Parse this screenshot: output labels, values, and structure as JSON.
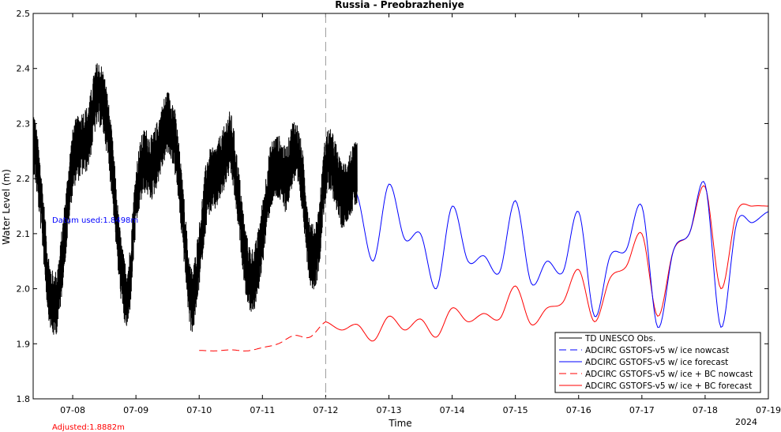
{
  "chart_data": {
    "type": "line",
    "title": "Russia - Preobrazheniye",
    "xlabel": "Time",
    "ylabel": "Water Level (m)",
    "year_label": "2024",
    "x_ticks": [
      "07-08",
      "07-09",
      "07-10",
      "07-11",
      "07-12",
      "07-13",
      "07-14",
      "07-15",
      "07-16",
      "07-17",
      "07-18",
      "07-19"
    ],
    "x_range": [
      "2024-07-07 09:00",
      "2024-07-19 00:00"
    ],
    "ylim": [
      1.8,
      2.5
    ],
    "y_ticks": [
      1.8,
      1.9,
      2.0,
      2.1,
      2.2,
      2.3,
      2.4,
      2.5
    ],
    "grid": false,
    "legend_position": "bottom-right",
    "nowcast_forecast_divider": "2024-07-12 00:00",
    "annotations": {
      "datum_used": "Datum used:1.8498m",
      "adjusted": "Adjusted:1.8882m"
    },
    "colors": {
      "obs": "#000000",
      "ice": "#0000ff",
      "bc": "#ff0000",
      "divider": "#999999",
      "datum_text": "#0000ff",
      "adjusted_text": "#ff0000"
    },
    "series": [
      {
        "name": "TD UNESCO Obs.",
        "style": "solid",
        "color": "#000000",
        "x": [
          "07-07 09:00",
          "07-07 12:00",
          "07-07 15:00",
          "07-07 18:00",
          "07-07 21:00",
          "07-08 00:00",
          "07-08 03:00",
          "07-08 06:00",
          "07-08 09:00",
          "07-08 12:00",
          "07-08 15:00",
          "07-08 18:00",
          "07-08 21:00",
          "07-09 00:00",
          "07-09 03:00",
          "07-09 06:00",
          "07-09 09:00",
          "07-09 12:00",
          "07-09 15:00",
          "07-09 18:00",
          "07-09 21:00",
          "07-10 00:00",
          "07-10 03:00",
          "07-10 06:00",
          "07-10 09:00",
          "07-10 12:00",
          "07-10 15:00",
          "07-10 18:00",
          "07-10 21:00",
          "07-11 00:00",
          "07-11 03:00",
          "07-11 06:00",
          "07-11 09:00",
          "07-11 12:00",
          "07-11 15:00",
          "07-11 18:00",
          "07-11 21:00",
          "07-12 00:00",
          "07-12 03:00",
          "07-12 06:00",
          "07-12 09:00",
          "07-12 12:00"
        ],
        "y": [
          2.27,
          2.16,
          2.0,
          1.98,
          2.1,
          2.23,
          2.26,
          2.28,
          2.35,
          2.33,
          2.22,
          2.05,
          1.99,
          2.16,
          2.23,
          2.22,
          2.26,
          2.3,
          2.26,
          2.12,
          1.98,
          2.06,
          2.18,
          2.2,
          2.23,
          2.26,
          2.16,
          2.04,
          2.02,
          2.1,
          2.2,
          2.22,
          2.2,
          2.25,
          2.2,
          2.07,
          2.08,
          2.22,
          2.22,
          2.17,
          2.19,
          2.21
        ],
        "noise_amplitude": 0.05
      },
      {
        "name": "ADCIRC GSTOFS-v5 w/ ice nowcast",
        "style": "dashed",
        "color": "#0000ff",
        "x": [
          "07-07 09:00",
          "07-07 12:00",
          "07-07 15:00",
          "07-07 18:00",
          "07-07 21:00",
          "07-08 00:00",
          "07-08 03:00",
          "07-08 06:00",
          "07-08 09:00",
          "07-08 12:00",
          "07-08 15:00",
          "07-08 18:00",
          "07-08 21:00",
          "07-09 00:00",
          "07-09 03:00",
          "07-09 06:00",
          "07-09 09:00",
          "07-09 12:00",
          "07-09 15:00",
          "07-09 18:00",
          "07-09 21:00",
          "07-10 00:00",
          "07-10 03:00",
          "07-10 06:00",
          "07-10 09:00",
          "07-10 12:00",
          "07-10 15:00",
          "07-10 18:00",
          "07-10 21:00",
          "07-11 00:00",
          "07-11 03:00",
          "07-11 06:00",
          "07-11 09:00",
          "07-11 12:00",
          "07-11 15:00",
          "07-11 18:00",
          "07-11 21:00",
          "07-12 00:00"
        ],
        "y": [
          2.27,
          2.16,
          2.0,
          1.98,
          2.1,
          2.23,
          2.26,
          2.28,
          2.35,
          2.33,
          2.22,
          2.05,
          1.99,
          2.16,
          2.23,
          2.22,
          2.26,
          2.3,
          2.26,
          2.12,
          1.98,
          2.06,
          2.18,
          2.2,
          2.23,
          2.26,
          2.16,
          2.04,
          2.02,
          2.1,
          2.2,
          2.22,
          2.2,
          2.25,
          2.2,
          2.07,
          2.08,
          2.22
        ]
      },
      {
        "name": "ADCIRC GSTOFS-v5 w/ ice forecast",
        "style": "solid",
        "color": "#0000ff",
        "x": [
          "07-12 00:00",
          "07-12 06:00",
          "07-12 12:00",
          "07-12 18:00",
          "07-13 00:00",
          "07-13 06:00",
          "07-13 12:00",
          "07-13 18:00",
          "07-14 00:00",
          "07-14 06:00",
          "07-14 12:00",
          "07-14 18:00",
          "07-15 00:00",
          "07-15 06:00",
          "07-15 12:00",
          "07-15 18:00",
          "07-16 00:00",
          "07-16 06:00",
          "07-16 12:00",
          "07-16 18:00",
          "07-17 00:00",
          "07-17 06:00",
          "07-17 12:00",
          "07-17 18:00",
          "07-18 00:00",
          "07-18 06:00",
          "07-18 12:00",
          "07-18 18:00",
          "07-19 00:00"
        ],
        "y": [
          2.22,
          2.2,
          2.17,
          2.05,
          2.19,
          2.09,
          2.1,
          2.0,
          2.15,
          2.05,
          2.06,
          2.03,
          2.16,
          2.01,
          2.05,
          2.03,
          2.14,
          1.95,
          2.06,
          2.07,
          2.15,
          1.93,
          2.07,
          2.1,
          2.19,
          1.93,
          2.12,
          2.12,
          2.14
        ]
      },
      {
        "name": "ADCIRC GSTOFS-v5 w/ ice + BC nowcast",
        "style": "dashed",
        "color": "#ff0000",
        "x": [
          "07-10 00:00",
          "07-10 06:00",
          "07-10 12:00",
          "07-10 18:00",
          "07-11 00:00",
          "07-11 06:00",
          "07-11 12:00",
          "07-11 18:00",
          "07-12 00:00"
        ],
        "y": [
          1.888,
          1.887,
          1.889,
          1.887,
          1.893,
          1.9,
          1.915,
          1.912,
          1.94
        ]
      },
      {
        "name": "ADCIRC GSTOFS-v5 w/ ice + BC forecast",
        "style": "solid",
        "color": "#ff0000",
        "x": [
          "07-12 00:00",
          "07-12 06:00",
          "07-12 12:00",
          "07-12 18:00",
          "07-13 00:00",
          "07-13 06:00",
          "07-13 12:00",
          "07-13 18:00",
          "07-14 00:00",
          "07-14 06:00",
          "07-14 12:00",
          "07-14 18:00",
          "07-15 00:00",
          "07-15 06:00",
          "07-15 12:00",
          "07-15 18:00",
          "07-16 00:00",
          "07-16 06:00",
          "07-16 12:00",
          "07-16 18:00",
          "07-17 00:00",
          "07-17 06:00",
          "07-17 12:00",
          "07-17 18:00",
          "07-18 00:00",
          "07-18 06:00",
          "07-18 12:00",
          "07-18 18:00",
          "07-19 00:00"
        ],
        "y": [
          1.94,
          1.925,
          1.935,
          1.905,
          1.95,
          1.925,
          1.945,
          1.912,
          1.965,
          1.94,
          1.955,
          1.945,
          2.005,
          1.935,
          1.965,
          1.975,
          2.035,
          1.94,
          2.02,
          2.04,
          2.1,
          1.95,
          2.07,
          2.1,
          2.185,
          2.0,
          2.14,
          2.15,
          2.15
        ]
      }
    ]
  }
}
